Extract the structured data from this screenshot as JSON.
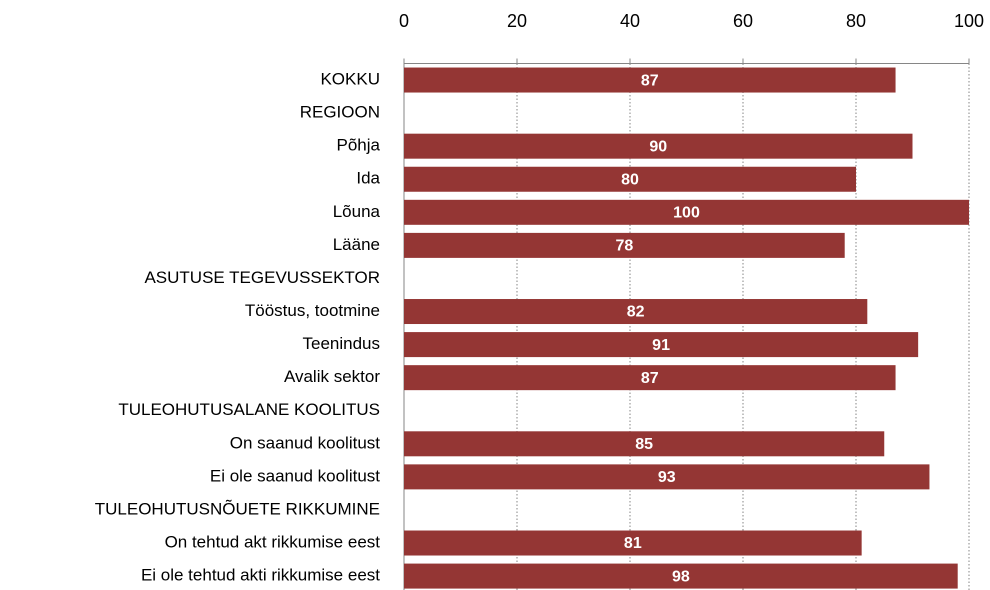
{
  "chart_data": {
    "type": "barh",
    "categories": [
      "KOKKU",
      "REGIOON",
      "Põhja",
      "Ida",
      "Lõuna",
      "Lääne",
      "ASUTUSE TEGEVUSSEKTOR",
      "Tööstus, tootmine",
      "Teenindus",
      "Avalik sektor",
      "TULEOHUTUSALANE KOOLITUS",
      "On saanud koolitust",
      "Ei ole saanud koolitust",
      "TULEOHUTUSNÕUETE RIKKUMINE",
      "On tehtud akt rikkumise eest",
      "Ei ole tehtud akti rikkumise eest"
    ],
    "values": [
      87,
      null,
      90,
      80,
      100,
      78,
      null,
      82,
      91,
      87,
      null,
      85,
      93,
      null,
      81,
      98
    ],
    "color": "#943634",
    "xlim": [
      0,
      100
    ],
    "xticks": [
      0,
      20,
      40,
      60,
      80,
      100
    ],
    "grid": true
  }
}
